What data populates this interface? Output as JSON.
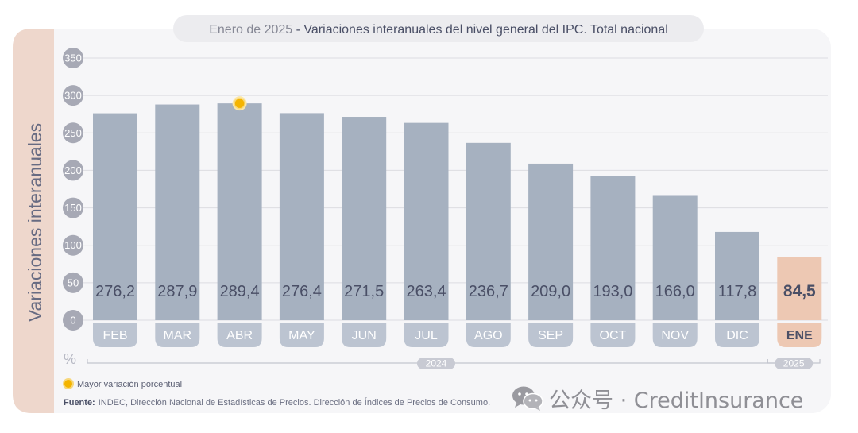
{
  "header": {
    "prefix": "Enero de 2025",
    "separator": " - ",
    "title": "Variaciones interanuales del nivel general del IPC. Total nacional"
  },
  "chart_data": {
    "type": "bar",
    "title": "Enero de 2025 - Variaciones interanuales del nivel general del IPC. Total nacional",
    "ylabel": "Variaciones interanuales",
    "yunit": "%",
    "ylim": [
      0,
      350
    ],
    "yticks": [
      "0",
      "50",
      "100",
      "150",
      "200",
      "250",
      "300",
      "350"
    ],
    "grid": true,
    "categories": [
      "FEB",
      "MAR",
      "ABR",
      "MAY",
      "JUN",
      "JUL",
      "AGO",
      "SEP",
      "OCT",
      "NOV",
      "DIC",
      "ENE"
    ],
    "values": [
      276.2,
      287.9,
      289.4,
      276.4,
      271.5,
      263.4,
      236.7,
      209.0,
      193.0,
      166.0,
      117.8,
      84.5
    ],
    "value_labels": [
      "276,2",
      "287,9",
      "289,4",
      "276,4",
      "271,5",
      "263,4",
      "236,7",
      "209,0",
      "193,0",
      "166,0",
      "117,8",
      "84,5"
    ],
    "year_groups": [
      {
        "label": "2024",
        "from": "FEB",
        "to": "DIC"
      },
      {
        "label": "2025",
        "from": "ENE",
        "to": "ENE"
      }
    ],
    "highlight": {
      "category": "ABR",
      "meaning": "Mayor variación porcentual"
    },
    "colors": {
      "bar": "#a6b1c0",
      "bar_highlight": "#edc8b3",
      "value_text": "#4a4f66",
      "axis_text": "#a7a9b5",
      "marker": "#f4b400",
      "sidebar": "#eed7cc",
      "panel": "#f6f6f8"
    }
  },
  "legend": {
    "label": "Mayor variación porcentual"
  },
  "source": {
    "label": "Fuente:",
    "text": "INDEC, Dirección Nacional de Estadísticas de Precios. Dirección de Índices de Precios de Consumo."
  },
  "watermark": {
    "text": "公众号 · CreditInsurance",
    "icon": "wechat-icon"
  }
}
